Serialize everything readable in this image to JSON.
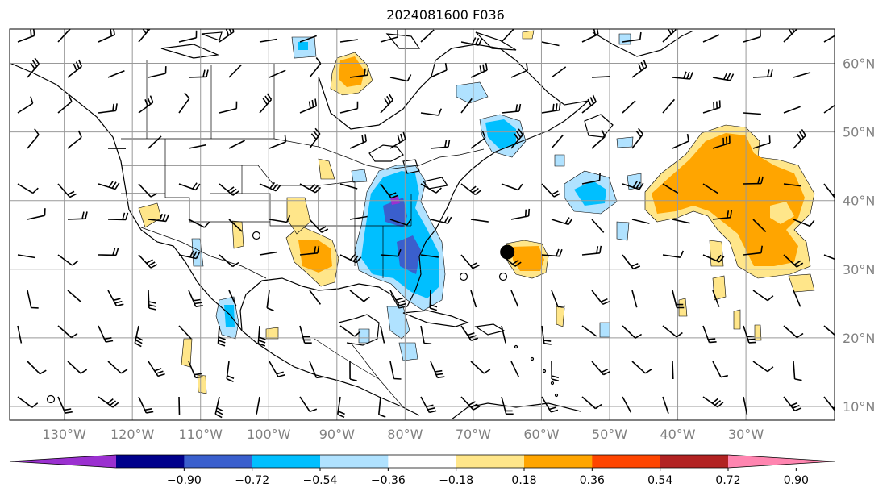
{
  "title": "2024081600 F036",
  "map": {
    "lon_range": [
      -138,
      -17
    ],
    "lat_range": [
      8,
      65
    ],
    "lat_labels": [
      "10°N",
      "20°N",
      "30°N",
      "40°N",
      "50°N",
      "60°N"
    ],
    "lat_values": [
      10,
      20,
      30,
      40,
      50,
      60
    ],
    "lon_labels": [
      "130°W",
      "120°W",
      "110°W",
      "100°W",
      "90°W",
      "80°W",
      "70°W",
      "60°W",
      "50°W",
      "40°W",
      "30°W"
    ],
    "lon_values": [
      -130,
      -120,
      -110,
      -100,
      -90,
      -80,
      -70,
      -60,
      -50,
      -40,
      -30
    ],
    "grid": true,
    "storm_marker": {
      "lon": -65,
      "lat": 32.5
    }
  },
  "colorbar": {
    "ticks": [
      "−0.90",
      "−0.72",
      "−0.54",
      "−0.36",
      "−0.18",
      "0.18",
      "0.36",
      "0.54",
      "0.72",
      "0.90"
    ],
    "colors": [
      "#9b30d0",
      "#00008b",
      "#3a5fcd",
      "#00bfff",
      "#b0e2ff",
      "#ffffff",
      "#ffe68a",
      "#ffa500",
      "#ff4500",
      "#b22222",
      "#ff85b0"
    ],
    "extend": "both"
  }
}
